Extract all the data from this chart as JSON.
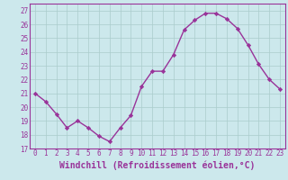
{
  "x": [
    0,
    1,
    2,
    3,
    4,
    5,
    6,
    7,
    8,
    9,
    10,
    11,
    12,
    13,
    14,
    15,
    16,
    17,
    18,
    19,
    20,
    21,
    22,
    23
  ],
  "y": [
    21.0,
    20.4,
    19.5,
    18.5,
    19.0,
    18.5,
    17.9,
    17.5,
    18.5,
    19.4,
    21.5,
    22.6,
    22.6,
    23.8,
    25.6,
    26.3,
    26.8,
    26.8,
    26.4,
    25.7,
    24.5,
    23.1,
    22.0,
    21.3
  ],
  "line_color": "#993399",
  "marker": "D",
  "marker_size": 2.2,
  "bg_color": "#cce8ec",
  "grid_color": "#aacccc",
  "xlabel": "Windchill (Refroidissement éolien,°C)",
  "ylim": [
    17,
    27.5
  ],
  "xlim": [
    -0.5,
    23.5
  ],
  "yticks": [
    17,
    18,
    19,
    20,
    21,
    22,
    23,
    24,
    25,
    26,
    27
  ],
  "xticks": [
    0,
    1,
    2,
    3,
    4,
    5,
    6,
    7,
    8,
    9,
    10,
    11,
    12,
    13,
    14,
    15,
    16,
    17,
    18,
    19,
    20,
    21,
    22,
    23
  ],
  "tick_label_color": "#993399",
  "tick_label_size": 5.5,
  "xlabel_size": 7.0,
  "spine_color": "#993399",
  "line_width": 1.0
}
